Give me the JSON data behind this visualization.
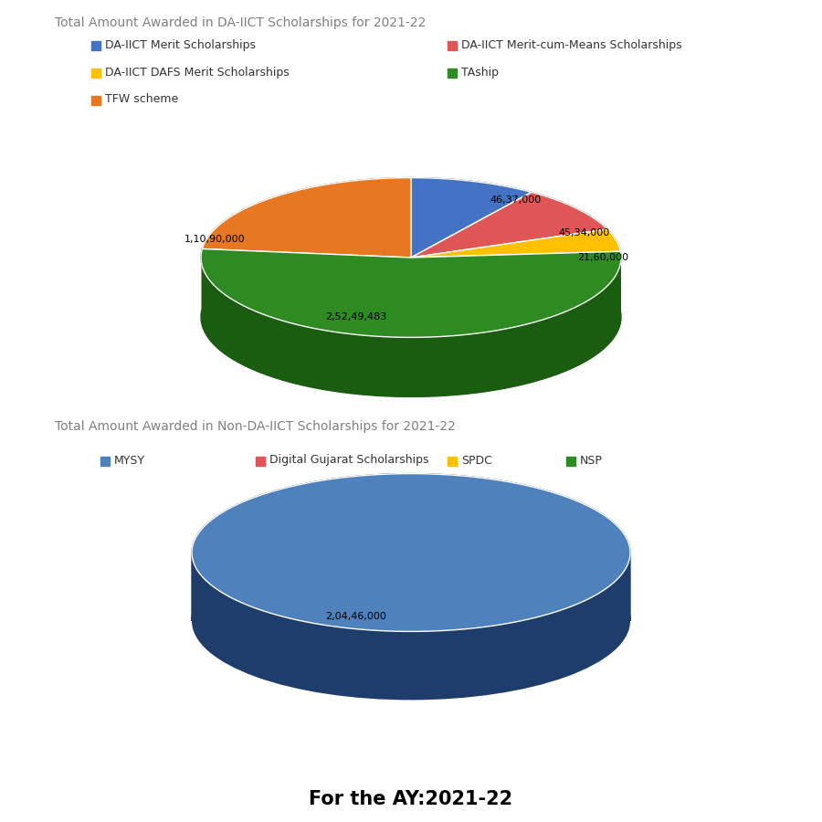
{
  "chart1_title": "Total Amount Awarded in DA-IICT Scholarships for 2021-22",
  "chart1_labels": [
    "DA-IICT Merit Scholarships",
    "DA-IICT Merit-cum-Means Scholarships",
    "DA-IICT DAFS Merit Scholarships",
    "TAship",
    "TFW scheme"
  ],
  "chart1_values": [
    4637000,
    4534000,
    2160000,
    25249483,
    11090000
  ],
  "chart1_colors": [
    "#4472C4",
    "#E05555",
    "#FFC000",
    "#2E8B22",
    "#E87722"
  ],
  "chart1_dark_colors": [
    "#2A4A8A",
    "#8B2222",
    "#A07800",
    "#1A5C10",
    "#8B4010"
  ],
  "chart1_autopct_labels": [
    "46,37,000",
    "45,34,000",
    "21,60,000",
    "2,52,49,483",
    "1,10,90,000"
  ],
  "chart2_title": "Total Amount Awarded in Non-DA-IICT Scholarships for 2021-22",
  "chart2_labels": [
    "MYSY",
    "Digital Gujarat Scholarships",
    "SPDC",
    "NSP"
  ],
  "chart2_values": [
    20446000,
    1,
    1,
    1
  ],
  "chart2_colors": [
    "#4F81BD",
    "#E05555",
    "#FFC000",
    "#2E8B22"
  ],
  "chart2_dark_colors": [
    "#1F3D6B",
    "#8B2222",
    "#A07800",
    "#1A5C10"
  ],
  "chart2_autopct_labels": [
    "2,04,46,000"
  ],
  "footer_text": "For the AY:2021-22",
  "bg_color": "#FFFFFF",
  "title_color": "#808080",
  "title_fontsize": 10,
  "legend_fontsize": 9,
  "label_fontsize": 8,
  "footer_fontsize": 15
}
